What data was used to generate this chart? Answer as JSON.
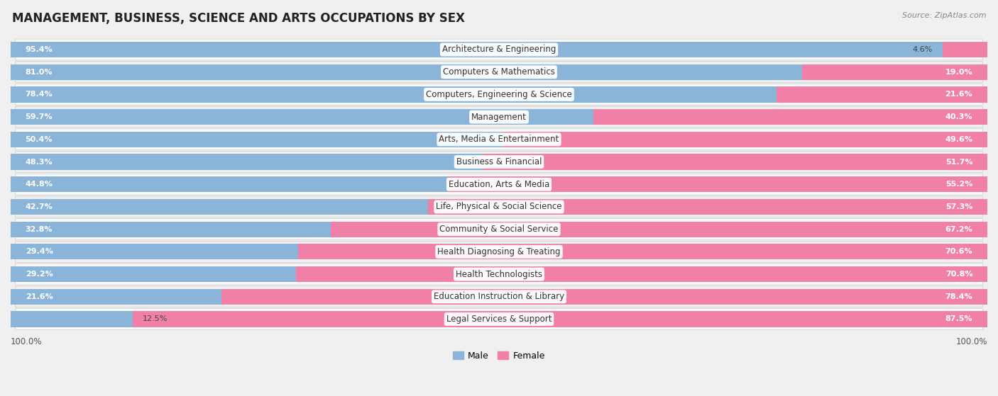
{
  "title": "MANAGEMENT, BUSINESS, SCIENCE AND ARTS OCCUPATIONS BY SEX",
  "source": "Source: ZipAtlas.com",
  "categories": [
    "Architecture & Engineering",
    "Computers & Mathematics",
    "Computers, Engineering & Science",
    "Management",
    "Arts, Media & Entertainment",
    "Business & Financial",
    "Education, Arts & Media",
    "Life, Physical & Social Science",
    "Community & Social Service",
    "Health Diagnosing & Treating",
    "Health Technologists",
    "Education Instruction & Library",
    "Legal Services & Support"
  ],
  "male_pct": [
    95.4,
    81.0,
    78.4,
    59.7,
    50.4,
    48.3,
    44.8,
    42.7,
    32.8,
    29.4,
    29.2,
    21.6,
    12.5
  ],
  "female_pct": [
    4.6,
    19.0,
    21.6,
    40.3,
    49.6,
    51.7,
    55.2,
    57.3,
    67.2,
    70.6,
    70.8,
    78.4,
    87.5
  ],
  "male_color": "#8ab4d8",
  "female_color": "#f080a8",
  "male_label": "Male",
  "female_label": "Female",
  "row_bg_even": "#f0f0f0",
  "row_bg_odd": "#fafafa",
  "title_fontsize": 12,
  "label_fontsize": 8.5,
  "pct_fontsize": 8,
  "source_fontsize": 8,
  "figsize": [
    14.06,
    5.59
  ],
  "dpi": 100,
  "xlim_left": 0,
  "xlim_right": 100
}
